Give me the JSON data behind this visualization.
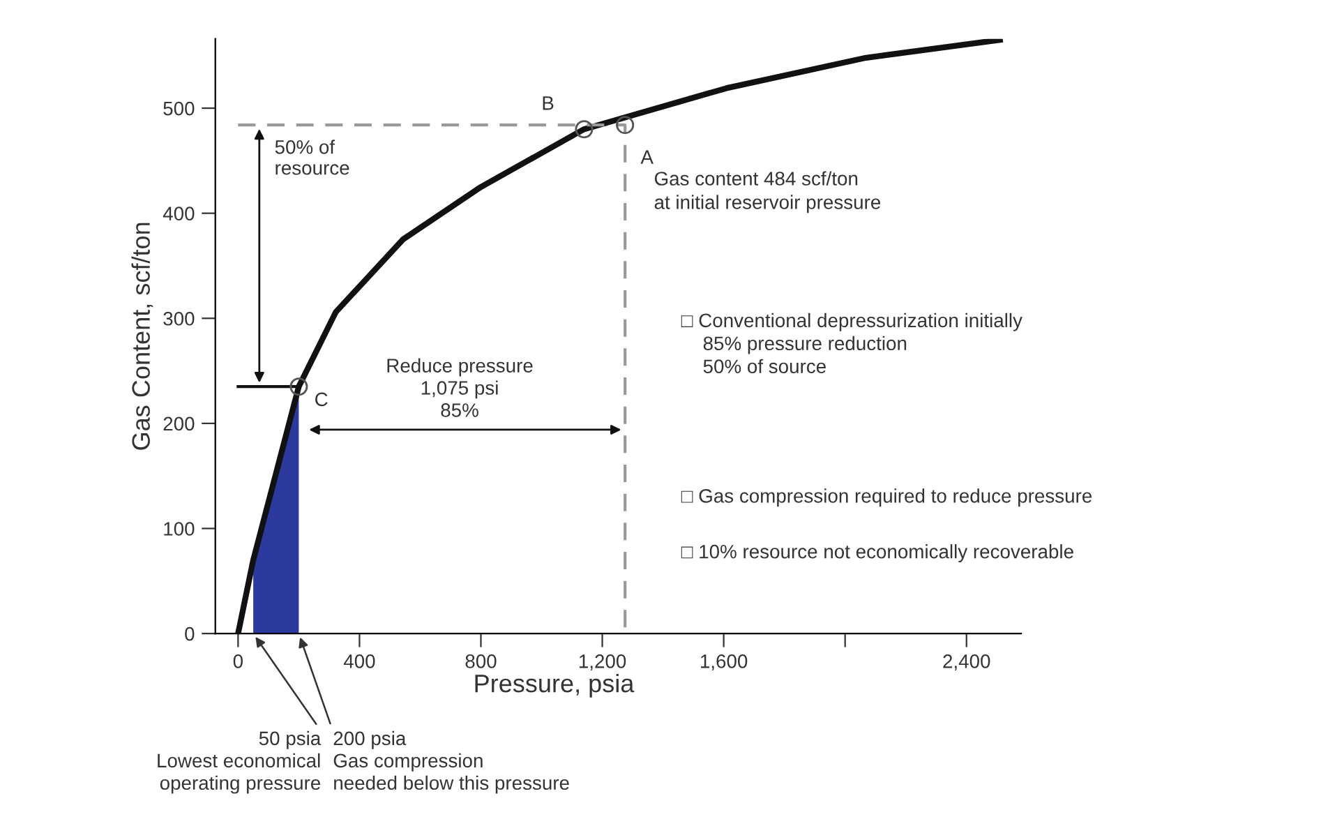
{
  "chart_data": {
    "type": "line",
    "xlabel": "Pressure, psia",
    "ylabel": "Gas Content, scf/ton",
    "xlim": [
      -75,
      2580
    ],
    "ylim": [
      0,
      566
    ],
    "xticks": [
      0,
      400,
      800,
      {
        "value": 1200,
        "label": "1,200"
      },
      {
        "value": 1600,
        "label": "1,600"
      },
      {
        "value": 2000,
        "label": null
      },
      {
        "value": 2400,
        "label": "2,400"
      }
    ],
    "yticks": [
      0,
      100,
      200,
      300,
      400,
      500
    ],
    "grid": false,
    "legend": false,
    "series": [
      {
        "type": "area",
        "color": "#2b3a9c",
        "x": [
          50,
          100,
          200
        ],
        "values": [
          70,
          125,
          235
        ]
      },
      {
        "color": "#111111",
        "marker": "none",
        "line_style": "solid",
        "x": [
          0,
          50,
          100,
          200,
          322,
          543,
          800,
          1140,
          1609,
          2069,
          2510
        ],
        "values": [
          0,
          70,
          125,
          235,
          306,
          375,
          425,
          480,
          519,
          548,
          565
        ]
      },
      {
        "type": "line",
        "color": "#999999",
        "marker": "none",
        "line_style": "dashed",
        "x": [
          0,
          1275,
          1275
        ],
        "values": [
          484,
          484,
          0
        ]
      },
      {
        "type": "line",
        "color": "#111111",
        "marker": "none",
        "line_style": "solid",
        "x": [
          0,
          200
        ],
        "values": [
          235,
          235
        ]
      },
      {
        "type": "scatter",
        "color": "#555555",
        "marker": "circle",
        "x": [
          1140,
          1275,
          200
        ],
        "values": [
          480,
          484,
          235
        ]
      }
    ],
    "annotations": [
      {
        "text": "B",
        "x": 1140,
        "y": 480
      },
      {
        "text": "A",
        "x": 1275,
        "y": 484
      },
      {
        "text": "C",
        "x": 200,
        "y": 235
      },
      "50% of\nresource",
      "Gas content 484 scf/ton\nat initial reservoir pressure",
      "Reduce pressure\n1,075 psi\n85%",
      "□ Conventional depressurization initially\n    85% pressure reduction\n    50% of source",
      "□ Gas compression required to reduce pressure",
      "□ 10% resource not economically recoverable",
      {
        "text": "50 psia\nLowest economical\noperating pressure",
        "x": 50,
        "y": 0
      },
      {
        "text": "200 psia\nGas compression\nneeded below this pressure",
        "x": 200,
        "y": 0
      }
    ]
  }
}
